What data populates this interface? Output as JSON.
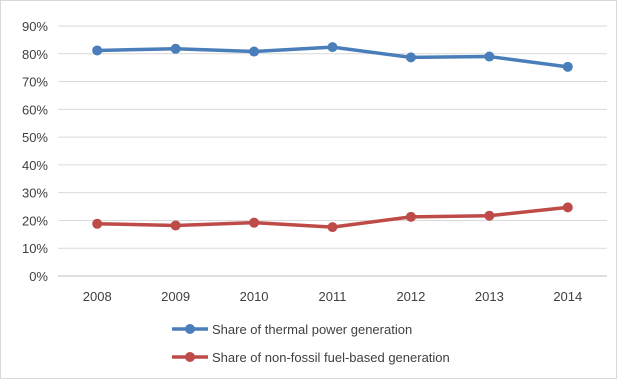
{
  "chart_data": {
    "type": "line",
    "title": "",
    "xlabel": "",
    "ylabel": "",
    "categories": [
      "2008",
      "2009",
      "2010",
      "2011",
      "2012",
      "2013",
      "2014"
    ],
    "y_ticks": [
      "0%",
      "10%",
      "20%",
      "30%",
      "40%",
      "50%",
      "60%",
      "70%",
      "80%",
      "90%"
    ],
    "ylim": [
      0,
      90
    ],
    "grid": true,
    "legend_position": "bottom",
    "series": [
      {
        "name": "Share of thermal power generation",
        "color": "#4A7EBB",
        "values": [
          81.2,
          81.8,
          80.8,
          82.4,
          78.7,
          79.0,
          75.3
        ]
      },
      {
        "name": "Share of non-fossil fuel-based generation",
        "color": "#BE4B48",
        "values": [
          18.8,
          18.2,
          19.2,
          17.6,
          21.3,
          21.7,
          24.7
        ]
      }
    ]
  }
}
